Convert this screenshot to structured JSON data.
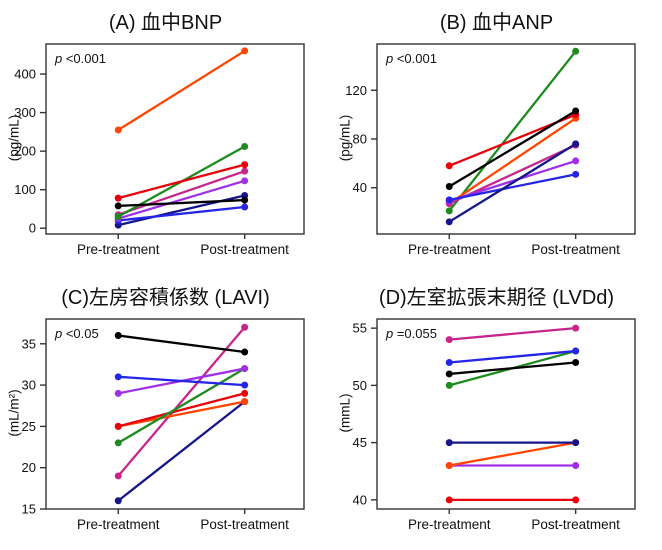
{
  "chart_data": [
    {
      "type": "line",
      "panel": "A",
      "title": "(A) 血中BNP",
      "p_prefix": "p",
      "p_value": "<0.001",
      "ylabel": "(pg/mL)",
      "xlabel": "",
      "categories": [
        "Pre-treatment",
        "Post-treatment"
      ],
      "yticks": [
        0,
        100,
        200,
        300,
        400
      ],
      "ylim": [
        -15,
        478
      ],
      "grid": false,
      "legend": "none",
      "series": [
        {
          "name": "patient-navy",
          "color": "#16168c",
          "values": [
            8,
            85
          ]
        },
        {
          "name": "patient-blue",
          "color": "#2525e6",
          "values": [
            20,
            55
          ]
        },
        {
          "name": "patient-purple",
          "color": "#a030e8",
          "values": [
            25,
            123
          ]
        },
        {
          "name": "patient-magenta",
          "color": "#c7258c",
          "values": [
            35,
            148
          ]
        },
        {
          "name": "patient-green",
          "color": "#1e8b1e",
          "values": [
            30,
            212
          ]
        },
        {
          "name": "patient-black",
          "color": "#000000",
          "values": [
            58,
            73
          ]
        },
        {
          "name": "patient-red",
          "color": "#e8000d",
          "values": [
            78,
            165
          ]
        },
        {
          "name": "patient-orange",
          "color": "#ff4500",
          "values": [
            255,
            460
          ]
        }
      ]
    },
    {
      "type": "line",
      "panel": "B",
      "title": "(B) 血中ANP",
      "p_prefix": "p",
      "p_value": "<0.001",
      "ylabel": "(pg/mL)",
      "xlabel": "",
      "categories": [
        "Pre-treatment",
        "Post-treatment"
      ],
      "yticks": [
        40,
        80,
        120
      ],
      "ylim": [
        2,
        158
      ],
      "grid": false,
      "legend": "none",
      "series": [
        {
          "name": "patient-green",
          "color": "#1e8b1e",
          "values": [
            21,
            152
          ]
        },
        {
          "name": "patient-orange",
          "color": "#ff4500",
          "values": [
            27,
            97
          ]
        },
        {
          "name": "patient-magenta",
          "color": "#c7258c",
          "values": [
            27,
            75
          ]
        },
        {
          "name": "patient-purple",
          "color": "#a030e8",
          "values": [
            29,
            62
          ]
        },
        {
          "name": "patient-blue",
          "color": "#2525e6",
          "values": [
            30,
            51
          ]
        },
        {
          "name": "patient-navy",
          "color": "#16168c",
          "values": [
            12,
            76
          ]
        },
        {
          "name": "patient-red",
          "color": "#e8000d",
          "values": [
            58,
            100
          ]
        },
        {
          "name": "patient-black",
          "color": "#000000",
          "values": [
            41,
            103
          ]
        }
      ]
    },
    {
      "type": "line",
      "panel": "C",
      "title": "(C)左房容積係数 (LAVI)",
      "p_prefix": "p",
      "p_value": "<0.05",
      "ylabel": "(mL/m²)",
      "xlabel": "",
      "categories": [
        "Pre-treatment",
        "Post-treatment"
      ],
      "yticks": [
        15,
        20,
        25,
        30,
        35
      ],
      "ylim": [
        15,
        38
      ],
      "grid": false,
      "legend": "none",
      "series": [
        {
          "name": "patient-navy",
          "color": "#16168c",
          "values": [
            16,
            28
          ]
        },
        {
          "name": "patient-magenta",
          "color": "#c7258c",
          "values": [
            19,
            37
          ]
        },
        {
          "name": "patient-orange",
          "color": "#ff4500",
          "values": [
            25,
            28
          ]
        },
        {
          "name": "patient-red",
          "color": "#e8000d",
          "values": [
            25,
            29
          ]
        },
        {
          "name": "patient-green",
          "color": "#1e8b1e",
          "values": [
            23,
            32
          ]
        },
        {
          "name": "patient-purple",
          "color": "#a030e8",
          "values": [
            29,
            32
          ]
        },
        {
          "name": "patient-blue",
          "color": "#2525e6",
          "values": [
            31,
            30
          ]
        },
        {
          "name": "patient-black",
          "color": "#000000",
          "values": [
            36,
            34
          ]
        }
      ]
    },
    {
      "type": "line",
      "panel": "D",
      "title": "(D)左室拡張末期径 (LVDd)",
      "p_prefix": "p",
      "p_value": "=0.055",
      "ylabel": "(mmL)",
      "xlabel": "",
      "categories": [
        "Pre-treatment",
        "Post-treatment"
      ],
      "yticks": [
        40,
        45,
        50,
        55
      ],
      "ylim": [
        39.2,
        55.8
      ],
      "grid": false,
      "legend": "none",
      "series": [
        {
          "name": "patient-red",
          "color": "#e8000d",
          "values": [
            40,
            40
          ]
        },
        {
          "name": "patient-purple",
          "color": "#a030e8",
          "values": [
            43,
            43
          ]
        },
        {
          "name": "patient-orange",
          "color": "#ff4500",
          "values": [
            43,
            45
          ]
        },
        {
          "name": "patient-navy",
          "color": "#16168c",
          "values": [
            45,
            45
          ]
        },
        {
          "name": "patient-green",
          "color": "#1e8b1e",
          "values": [
            50,
            53
          ]
        },
        {
          "name": "patient-black",
          "color": "#000000",
          "values": [
            51,
            52
          ]
        },
        {
          "name": "patient-blue",
          "color": "#2525e6",
          "values": [
            52,
            53
          ]
        },
        {
          "name": "patient-magenta",
          "color": "#c7258c",
          "values": [
            54,
            55
          ]
        }
      ]
    }
  ]
}
